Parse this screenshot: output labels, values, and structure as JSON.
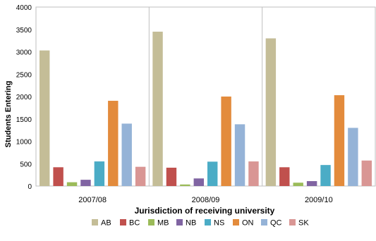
{
  "chart_data": {
    "type": "bar",
    "categories": [
      "2007/08",
      "2008/09",
      "2009/10"
    ],
    "series": [
      {
        "name": "AB",
        "color": "#C4BD97",
        "values": [
          3030,
          3450,
          3300
        ]
      },
      {
        "name": "BC",
        "color": "#C0504D",
        "values": [
          420,
          410,
          420
        ]
      },
      {
        "name": "MB",
        "color": "#9BBB59",
        "values": [
          85,
          35,
          75
        ]
      },
      {
        "name": "NB",
        "color": "#8064A2",
        "values": [
          140,
          170,
          110
        ]
      },
      {
        "name": "NS",
        "color": "#4BACC6",
        "values": [
          550,
          545,
          470
        ]
      },
      {
        "name": "ON",
        "color": "#E38B3C",
        "values": [
          1905,
          2000,
          2030
        ]
      },
      {
        "name": "QC",
        "color": "#95B3D7",
        "values": [
          1395,
          1380,
          1300
        ]
      },
      {
        "name": "SK",
        "color": "#D99694",
        "values": [
          430,
          550,
          570
        ]
      }
    ],
    "title": "",
    "xlabel": "Jurisdiction of receiving university",
    "ylabel": "Students Entering",
    "ylim": [
      0,
      4000
    ],
    "yticks": [
      "0",
      "500",
      "1000",
      "1500",
      "2000",
      "2500",
      "3000",
      "3500",
      "4000"
    ],
    "grid": "vertical category separators",
    "legend": "bottom"
  }
}
